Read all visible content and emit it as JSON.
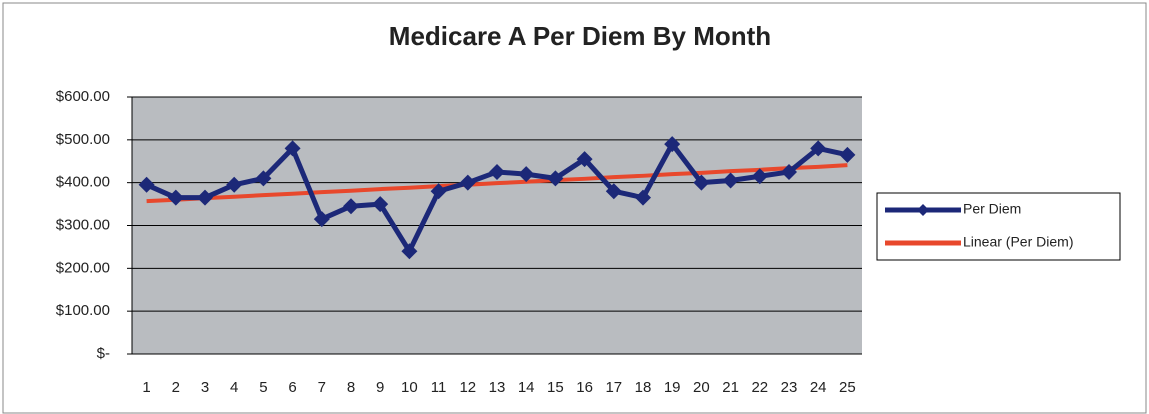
{
  "chart_data": {
    "type": "line",
    "title": "Medicare A Per Diem By Month",
    "categories": [
      "1",
      "2",
      "3",
      "4",
      "5",
      "6",
      "7",
      "8",
      "9",
      "10",
      "11",
      "12",
      "13",
      "14",
      "15",
      "16",
      "17",
      "18",
      "19",
      "20",
      "21",
      "22",
      "23",
      "24",
      "25"
    ],
    "series": [
      {
        "name": "Per Diem",
        "color": "#1c2878",
        "marker": "diamond",
        "values": [
          395,
          365,
          365,
          395,
          410,
          480,
          315,
          345,
          350,
          240,
          380,
          400,
          425,
          420,
          410,
          455,
          380,
          365,
          490,
          400,
          405,
          415,
          425,
          480,
          465
        ]
      },
      {
        "name": "Linear (Per Diem)",
        "color": "#e8482c",
        "values": [
          357,
          360,
          364,
          367,
          371,
          374,
          378,
          381,
          385,
          388,
          392,
          395,
          399,
          402,
          406,
          409,
          413,
          416,
          420,
          423,
          427,
          430,
          434,
          437,
          441
        ]
      }
    ],
    "ylim": [
      0,
      600
    ],
    "yticks": [
      {
        "value": 0,
        "label": "$-"
      },
      {
        "value": 100,
        "label": "$100.00"
      },
      {
        "value": 200,
        "label": "$200.00"
      },
      {
        "value": 300,
        "label": "$300.00"
      },
      {
        "value": 400,
        "label": "$400.00"
      },
      {
        "value": 500,
        "label": "$500.00"
      },
      {
        "value": 600,
        "label": "$600.00"
      }
    ],
    "grid": true,
    "legend": "right"
  }
}
